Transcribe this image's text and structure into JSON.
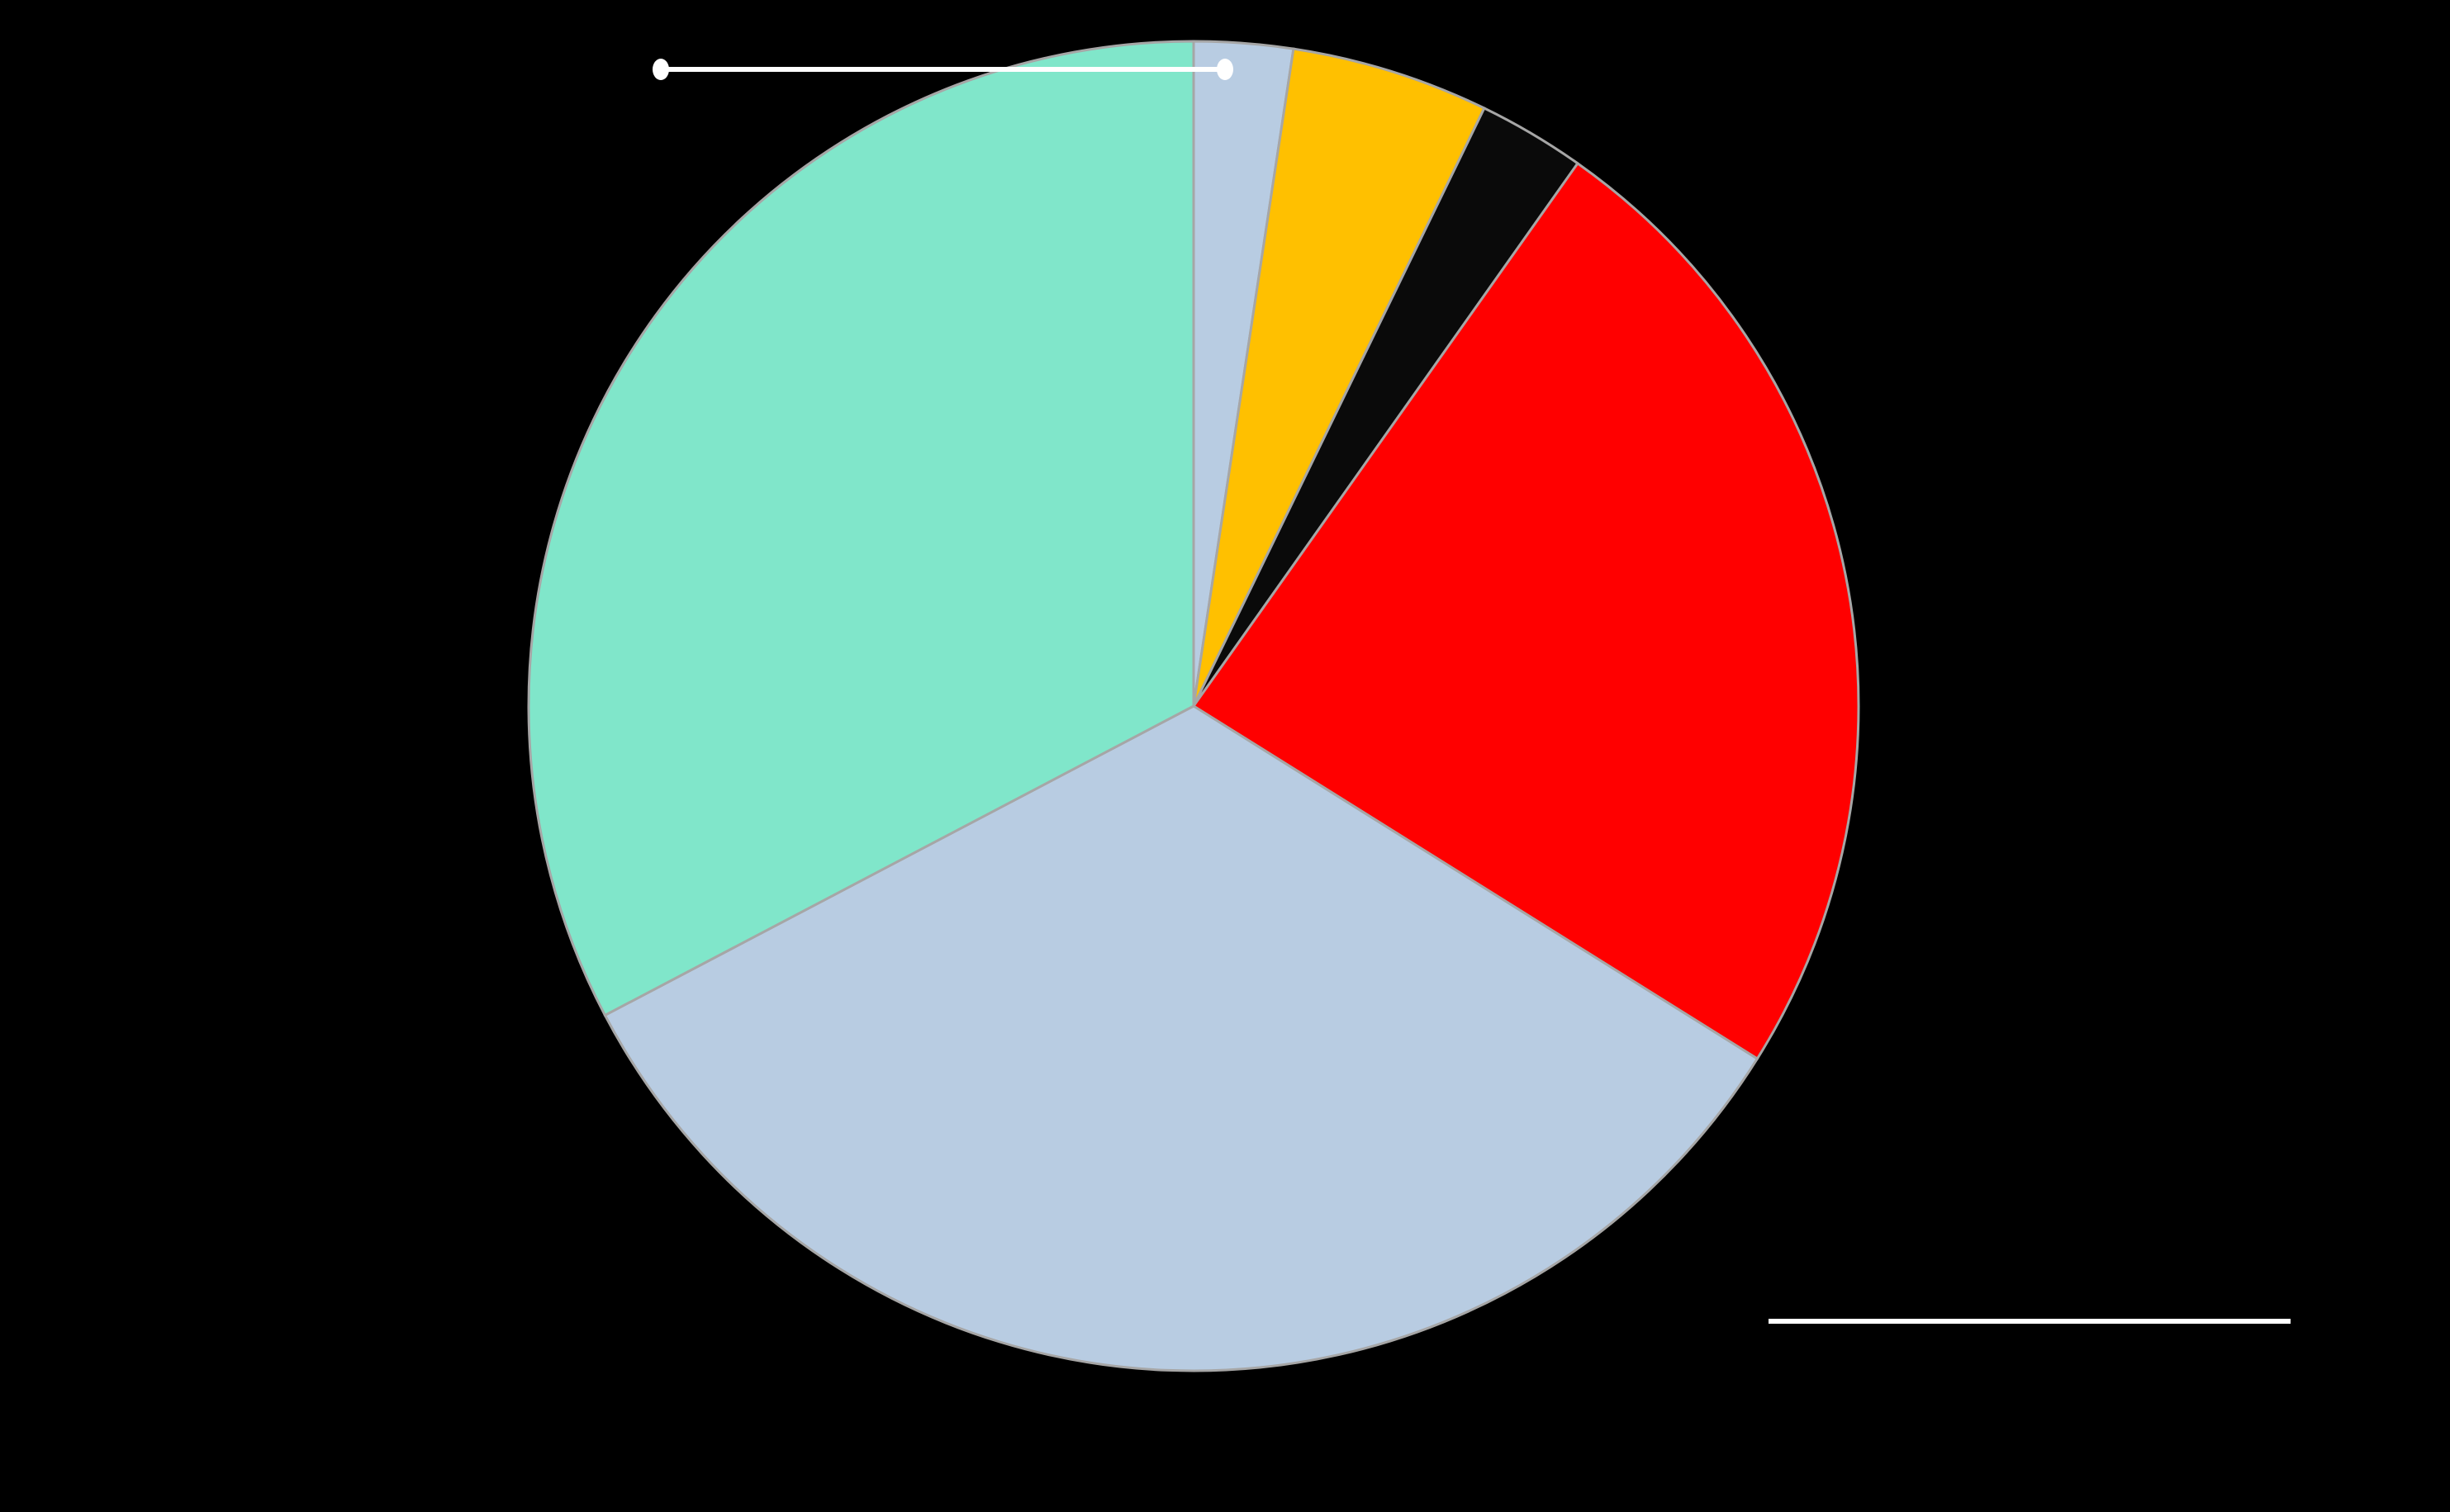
{
  "chart_data": {
    "type": "pie",
    "start_angle": "12 o'clock",
    "direction": "clockwise",
    "legend": "none",
    "slices": [
      {
        "value": 2.4,
        "color": "#b8cce2"
      },
      {
        "value": 4.8,
        "color": "#ffc000"
      },
      {
        "value": 2.6,
        "color": "#0a0a0a"
      },
      {
        "value": 24.1,
        "color": "#ff0000"
      },
      {
        "value": 33.4,
        "color": "#b8cce2"
      },
      {
        "value": 32.7,
        "color": "#80e6ca"
      }
    ],
    "slice_border_color": "#a6a6a6",
    "background": "#000000",
    "annotation_line_color": "#ffffff"
  }
}
